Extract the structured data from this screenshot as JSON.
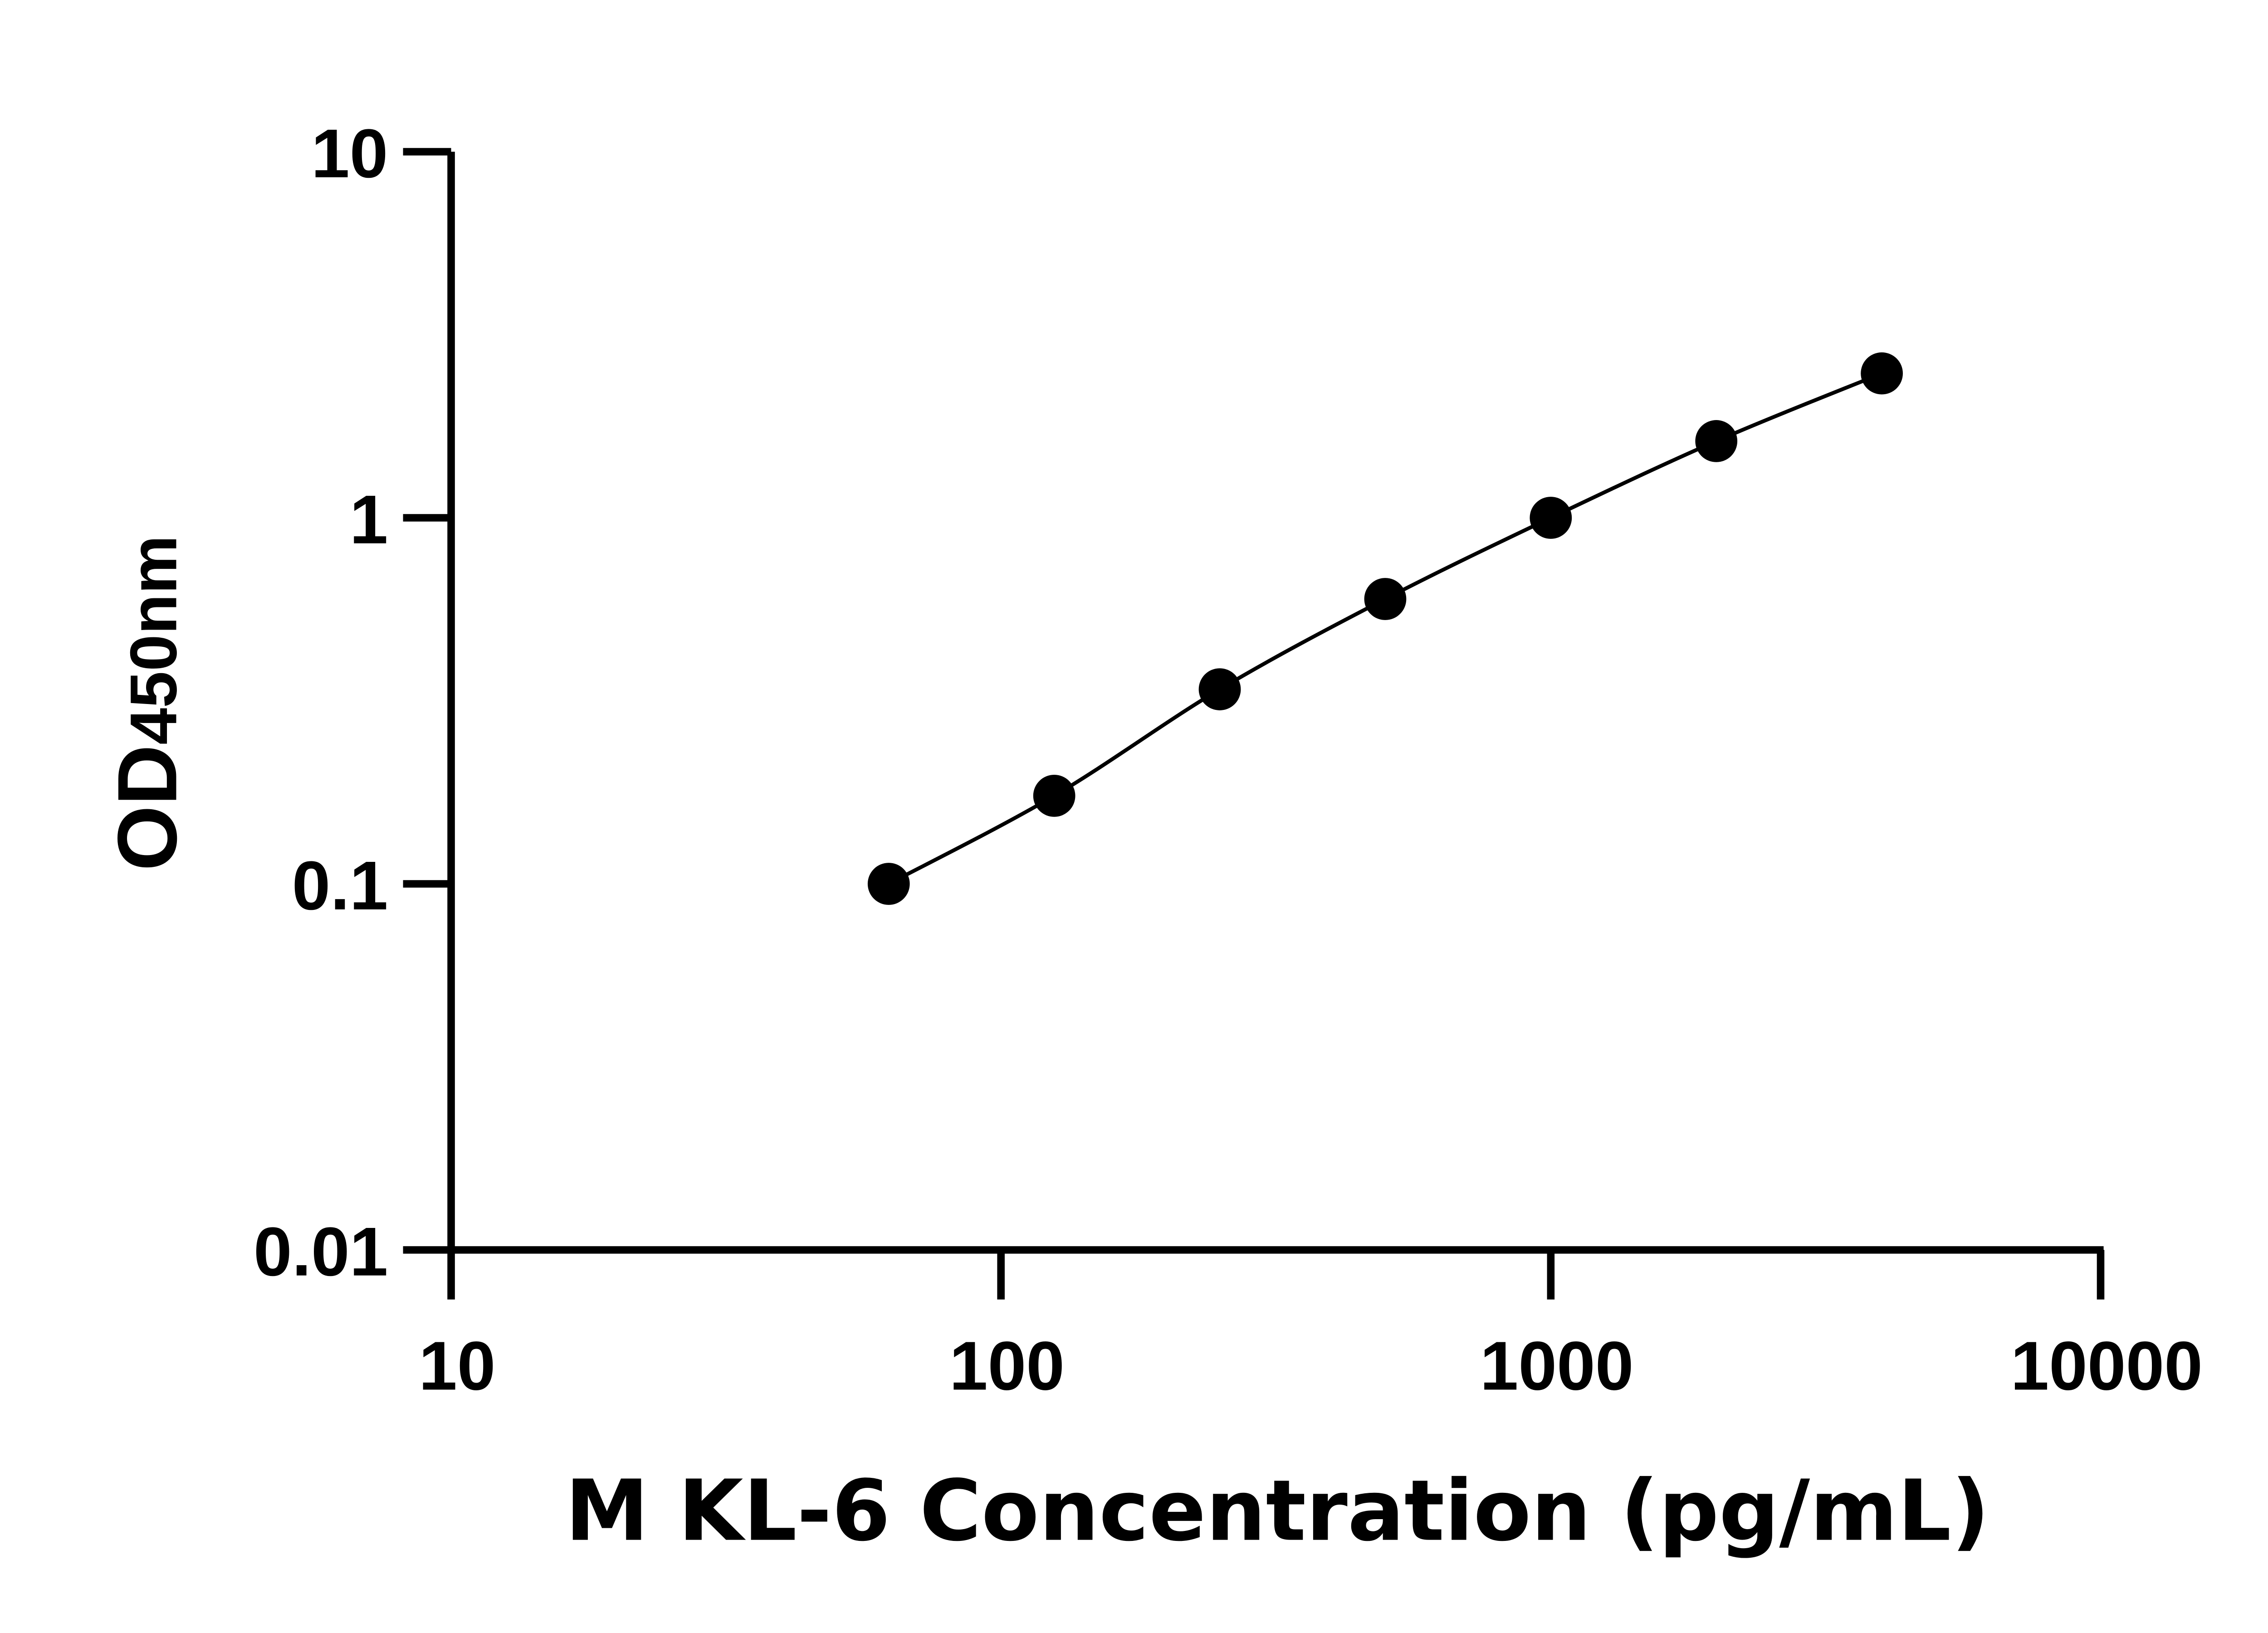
{
  "chart_data": {
    "type": "line",
    "title": "",
    "xlabel": "M KL-6 Concentration (pg/mL)",
    "ylabel": {
      "main": "OD",
      "sub": "450nm"
    },
    "x_scale": "log",
    "y_scale": "log",
    "xlim": [
      10,
      10000
    ],
    "ylim": [
      0.01,
      10
    ],
    "x_ticks": [
      "10",
      "100",
      "1000",
      "10000"
    ],
    "y_ticks": [
      "0.01",
      "0.1",
      "1",
      "10"
    ],
    "grid": false,
    "legend": "none",
    "series": [
      {
        "x": [
          62.5,
          125,
          250,
          500,
          1000,
          2000,
          4000
        ],
        "y": [
          0.1,
          0.174,
          0.34,
          0.6,
          1.0,
          1.62,
          2.48
        ],
        "color": "#000000",
        "marker": "circle",
        "line": "fitted curve"
      }
    ]
  }
}
